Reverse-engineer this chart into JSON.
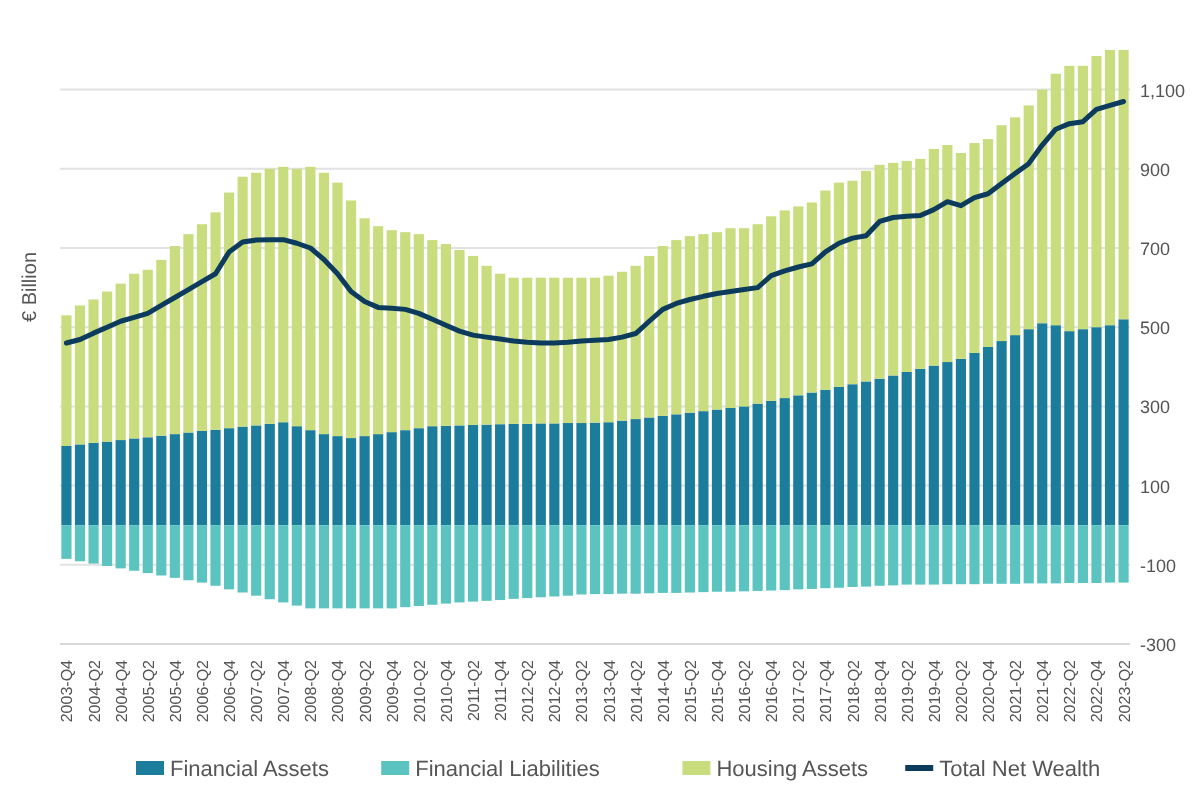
{
  "chart_data": {
    "type": "bar",
    "stacked": true,
    "ylabel": "€ Billion",
    "categories": [
      "2003-Q4",
      null,
      "2004-Q2",
      null,
      "2004-Q4",
      null,
      "2005-Q2",
      null,
      "2005-Q4",
      null,
      "2006-Q2",
      null,
      "2006-Q4",
      null,
      "2007-Q2",
      null,
      "2007-Q4",
      null,
      "2008-Q2",
      null,
      "2008-Q4",
      null,
      "2009-Q2",
      null,
      "2009-Q4",
      null,
      "2010-Q2",
      null,
      "2010-Q4",
      null,
      "2011-Q2",
      null,
      "2011-Q4",
      null,
      "2012-Q2",
      null,
      "2012-Q4",
      null,
      "2013-Q2",
      null,
      "2013-Q4",
      null,
      "2014-Q2",
      null,
      "2014-Q4",
      null,
      "2015-Q2",
      null,
      "2015-Q4",
      null,
      "2016-Q2",
      null,
      "2016-Q4",
      null,
      "2017-Q2",
      null,
      "2017-Q4",
      null,
      "2018-Q2",
      null,
      "2018-Q4",
      null,
      "2019-Q2",
      null,
      "2019-Q4",
      null,
      "2020-Q2",
      null,
      "2020-Q4",
      null,
      "2021-Q2",
      null,
      "2021-Q4",
      null,
      "2022-Q2",
      null,
      "2022-Q4",
      null,
      "2023-Q2"
    ],
    "series": [
      {
        "name": "Financial Assets",
        "color": "#1b7c9c",
        "values": [
          200,
          204,
          208,
          211,
          215,
          219,
          222,
          226,
          230,
          234,
          238,
          241,
          245,
          249,
          252,
          256,
          260,
          250,
          240,
          230,
          225,
          220,
          225,
          230,
          235,
          240,
          245,
          250,
          251,
          252,
          253,
          254,
          255,
          256,
          256,
          257,
          257,
          258,
          258,
          259,
          260,
          264,
          268,
          272,
          276,
          280,
          284,
          288,
          292,
          296,
          300,
          307,
          314,
          321,
          328,
          335,
          342,
          349,
          356,
          363,
          370,
          378,
          387,
          395,
          403,
          412,
          420,
          435,
          450,
          465,
          480,
          495,
          510,
          505,
          490,
          495,
          500,
          505,
          520
        ]
      },
      {
        "name": "Financial Liabilities",
        "color": "#5bc4c0",
        "values": [
          -85,
          -91,
          -97,
          -103,
          -109,
          -115,
          -121,
          -127,
          -133,
          -139,
          -145,
          -153,
          -162,
          -170,
          -178,
          -187,
          -195,
          -203,
          -210,
          -210,
          -210,
          -210,
          -210,
          -210,
          -210,
          -207,
          -204,
          -201,
          -198,
          -195,
          -193,
          -191,
          -189,
          -186,
          -184,
          -182,
          -180,
          -178,
          -175,
          -174,
          -174,
          -173,
          -173,
          -172,
          -171,
          -171,
          -170,
          -169,
          -168,
          -168,
          -167,
          -166,
          -165,
          -164,
          -162,
          -161,
          -159,
          -158,
          -156,
          -155,
          -153,
          -152,
          -150,
          -150,
          -150,
          -149,
          -149,
          -149,
          -148,
          -148,
          -148,
          -147,
          -147,
          -147,
          -146,
          -146,
          -146,
          -145,
          -145
        ]
      },
      {
        "name": "Housing Assets",
        "color": "#c9dc7e",
        "values": [
          330,
          351,
          362,
          379,
          395,
          416,
          423,
          444,
          475,
          501,
          522,
          549,
          595,
          631,
          638,
          644,
          645,
          650,
          665,
          660,
          640,
          600,
          550,
          525,
          510,
          500,
          490,
          470,
          459,
          443,
          427,
          401,
          380,
          369,
          369,
          368,
          368,
          367,
          367,
          366,
          370,
          376,
          387,
          408,
          429,
          440,
          446,
          447,
          448,
          454,
          450,
          453,
          466,
          474,
          477,
          480,
          503,
          516,
          514,
          532,
          540,
          537,
          533,
          530,
          547,
          548,
          520,
          530,
          525,
          545,
          550,
          565,
          590,
          635,
          670,
          665,
          685,
          695,
          680
        ]
      },
      {
        "name": "Total Net Wealth",
        "type": "line",
        "color": "#0d3b5e",
        "values": [
          460,
          469,
          485,
          500,
          515,
          525,
          535,
          555,
          575,
          595,
          615,
          635,
          690,
          715,
          720,
          721,
          721,
          712,
          700,
          671,
          635,
          590,
          565,
          550,
          548,
          545,
          535,
          520,
          505,
          490,
          480,
          475,
          470,
          465,
          462,
          460,
          460,
          462,
          465,
          467,
          469,
          475,
          484,
          515,
          545,
          560,
          570,
          578,
          585,
          590,
          595,
          600,
          630,
          642,
          652,
          660,
          690,
          712,
          725,
          731,
          767,
          777,
          780,
          782,
          797,
          817,
          807,
          827,
          837,
          863,
          888,
          913,
          960,
          1000,
          1014,
          1019,
          1050,
          1060,
          1070
        ]
      }
    ],
    "ylim": [
      -300,
      1200
    ],
    "yticks": [
      {
        "value": -300,
        "label": "-300"
      },
      {
        "value": -100,
        "label": "-100"
      },
      {
        "value": 100,
        "label": "100"
      },
      {
        "value": 300,
        "label": "300"
      },
      {
        "value": 500,
        "label": "500"
      },
      {
        "value": 700,
        "label": "700"
      },
      {
        "value": 900,
        "label": "900"
      },
      {
        "value": 1100,
        "label": "1,100"
      }
    ],
    "grid": "y",
    "legend": "bottom"
  }
}
